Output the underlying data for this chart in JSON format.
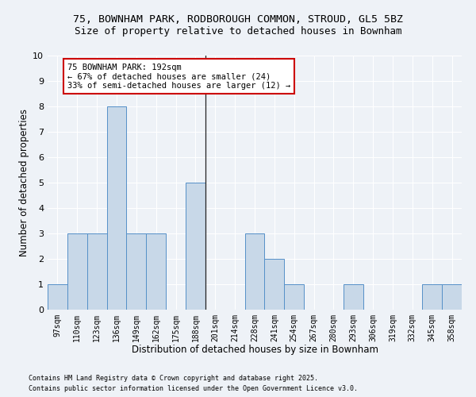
{
  "title1": "75, BOWNHAM PARK, RODBOROUGH COMMON, STROUD, GL5 5BZ",
  "title2": "Size of property relative to detached houses in Bownham",
  "xlabel": "Distribution of detached houses by size in Bownham",
  "ylabel": "Number of detached properties",
  "categories": [
    "97sqm",
    "110sqm",
    "123sqm",
    "136sqm",
    "149sqm",
    "162sqm",
    "175sqm",
    "188sqm",
    "201sqm",
    "214sqm",
    "228sqm",
    "241sqm",
    "254sqm",
    "267sqm",
    "280sqm",
    "293sqm",
    "306sqm",
    "319sqm",
    "332sqm",
    "345sqm",
    "358sqm"
  ],
  "values": [
    1,
    3,
    3,
    8,
    3,
    3,
    0,
    5,
    0,
    0,
    3,
    2,
    1,
    0,
    0,
    1,
    0,
    0,
    0,
    1,
    1
  ],
  "bar_color": "#c8d8e8",
  "bar_edge_color": "#5590c8",
  "annotation_text": "75 BOWNHAM PARK: 192sqm\n← 67% of detached houses are smaller (24)\n33% of semi-detached houses are larger (12) →",
  "annotation_box_color": "#ffffff",
  "annotation_box_edge": "#cc0000",
  "vline_color": "#222222",
  "ylim": [
    0,
    10
  ],
  "yticks": [
    0,
    1,
    2,
    3,
    4,
    5,
    6,
    7,
    8,
    9,
    10
  ],
  "footer1": "Contains HM Land Registry data © Crown copyright and database right 2025.",
  "footer2": "Contains public sector information licensed under the Open Government Licence v3.0.",
  "bg_color": "#eef2f7",
  "grid_color": "#ffffff",
  "title_fontsize": 9.5,
  "subtitle_fontsize": 9,
  "tick_fontsize": 7,
  "label_fontsize": 8.5,
  "footer_fontsize": 6,
  "annot_fontsize": 7.5
}
